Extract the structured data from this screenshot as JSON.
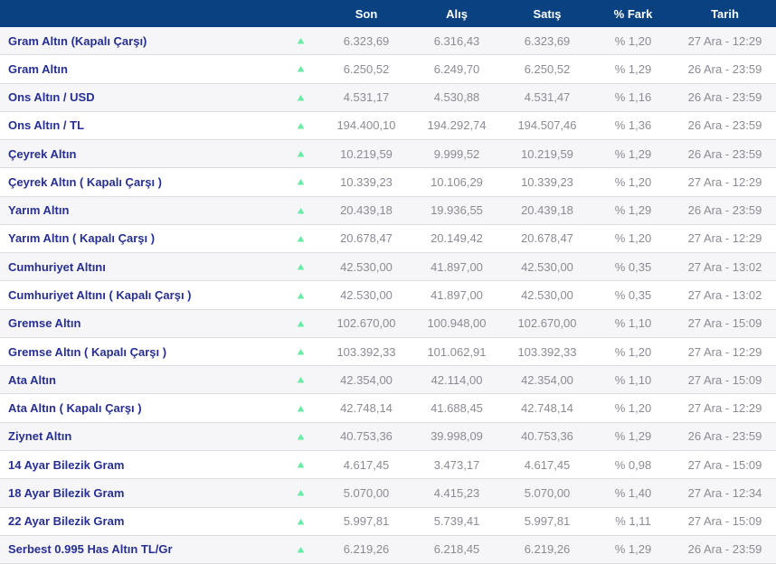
{
  "table": {
    "columns": {
      "son": "Son",
      "alis": "Alış",
      "satis": "Satış",
      "fark": "% Fark",
      "tarih": "Tarih"
    },
    "up_arrow_glyph": "▲",
    "rows": [
      {
        "name": "Gram Altın (Kapalı Çarşı)",
        "direction": "up",
        "son": "6.323,69",
        "alis": "6.316,43",
        "satis": "6.323,69",
        "fark": "% 1,20",
        "tarih": "27 Ara - 12:29"
      },
      {
        "name": "Gram Altın",
        "direction": "up",
        "son": "6.250,52",
        "alis": "6.249,70",
        "satis": "6.250,52",
        "fark": "% 1,29",
        "tarih": "26 Ara - 23:59"
      },
      {
        "name": "Ons Altın / USD",
        "direction": "up",
        "son": "4.531,17",
        "alis": "4.530,88",
        "satis": "4.531,47",
        "fark": "% 1,16",
        "tarih": "26 Ara - 23:59"
      },
      {
        "name": "Ons Altın / TL",
        "direction": "up",
        "son": "194.400,10",
        "alis": "194.292,74",
        "satis": "194.507,46",
        "fark": "% 1,36",
        "tarih": "26 Ara - 23:59"
      },
      {
        "name": "Çeyrek Altın",
        "direction": "up",
        "son": "10.219,59",
        "alis": "9.999,52",
        "satis": "10.219,59",
        "fark": "% 1,29",
        "tarih": "26 Ara - 23:59"
      },
      {
        "name": "Çeyrek Altın ( Kapalı Çarşı )",
        "direction": "up",
        "son": "10.339,23",
        "alis": "10.106,29",
        "satis": "10.339,23",
        "fark": "% 1,20",
        "tarih": "27 Ara - 12:29"
      },
      {
        "name": "Yarım Altın",
        "direction": "up",
        "son": "20.439,18",
        "alis": "19.936,55",
        "satis": "20.439,18",
        "fark": "% 1,29",
        "tarih": "26 Ara - 23:59"
      },
      {
        "name": "Yarım Altın ( Kapalı Çarşı )",
        "direction": "up",
        "son": "20.678,47",
        "alis": "20.149,42",
        "satis": "20.678,47",
        "fark": "% 1,20",
        "tarih": "27 Ara - 12:29"
      },
      {
        "name": "Cumhuriyet Altını",
        "direction": "up",
        "son": "42.530,00",
        "alis": "41.897,00",
        "satis": "42.530,00",
        "fark": "% 0,35",
        "tarih": "27 Ara - 13:02"
      },
      {
        "name": "Cumhuriyet Altını ( Kapalı Çarşı )",
        "direction": "up",
        "son": "42.530,00",
        "alis": "41.897,00",
        "satis": "42.530,00",
        "fark": "% 0,35",
        "tarih": "27 Ara - 13:02"
      },
      {
        "name": "Gremse Altın",
        "direction": "up",
        "son": "102.670,00",
        "alis": "100.948,00",
        "satis": "102.670,00",
        "fark": "% 1,10",
        "tarih": "27 Ara - 15:09"
      },
      {
        "name": "Gremse Altın ( Kapalı Çarşı )",
        "direction": "up",
        "son": "103.392,33",
        "alis": "101.062,91",
        "satis": "103.392,33",
        "fark": "% 1,20",
        "tarih": "27 Ara - 12:29"
      },
      {
        "name": "Ata Altın",
        "direction": "up",
        "son": "42.354,00",
        "alis": "42.114,00",
        "satis": "42.354,00",
        "fark": "% 1,10",
        "tarih": "27 Ara - 15:09"
      },
      {
        "name": "Ata Altın ( Kapalı Çarşı )",
        "direction": "up",
        "son": "42.748,14",
        "alis": "41.688,45",
        "satis": "42.748,14",
        "fark": "% 1,20",
        "tarih": "27 Ara - 12:29"
      },
      {
        "name": "Ziynet Altın",
        "direction": "up",
        "son": "40.753,36",
        "alis": "39.998,09",
        "satis": "40.753,36",
        "fark": "% 1,29",
        "tarih": "26 Ara - 23:59"
      },
      {
        "name": "14 Ayar Bilezik Gram",
        "direction": "up",
        "son": "4.617,45",
        "alis": "3.473,17",
        "satis": "4.617,45",
        "fark": "% 0,98",
        "tarih": "27 Ara - 15:09"
      },
      {
        "name": "18 Ayar Bilezik Gram",
        "direction": "up",
        "son": "5.070,00",
        "alis": "4.415,23",
        "satis": "5.070,00",
        "fark": "% 1,40",
        "tarih": "27 Ara - 12:34"
      },
      {
        "name": "22 Ayar Bilezik Gram",
        "direction": "up",
        "son": "5.997,81",
        "alis": "5.739,41",
        "satis": "5.997,81",
        "fark": "% 1,11",
        "tarih": "27 Ara - 15:09"
      },
      {
        "name": "Serbest 0.995 Has Altın TL/Gr",
        "direction": "up",
        "son": "6.219,26",
        "alis": "6.218,45",
        "satis": "6.219,26",
        "fark": "% 1,29",
        "tarih": "26 Ara - 23:59"
      }
    ]
  },
  "colors": {
    "header_bg": "#0a4181",
    "header_text": "#ffffff",
    "row_name_text": "#272f91",
    "value_text": "#8b8b95",
    "up_arrow": "#67eca5",
    "stripe_bg": "#f6f6f8",
    "divider": "#dcdce2"
  }
}
